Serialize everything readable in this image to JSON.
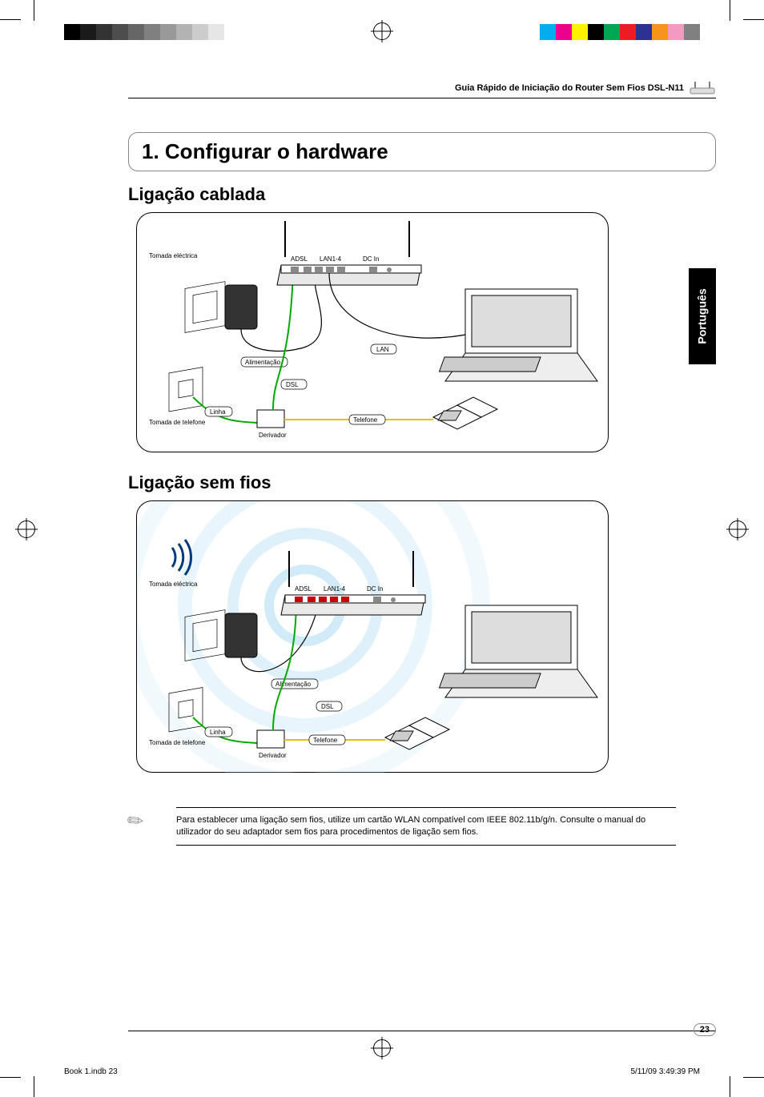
{
  "header": {
    "title": "Guia Rápido de Iniciação do Router Sem Fios DSL-N11"
  },
  "section": {
    "heading": "1. Configurar o hardware"
  },
  "subheadings": {
    "wired": "Ligação cablada",
    "wireless": "Ligação sem fios"
  },
  "side_tab": {
    "label": "Português"
  },
  "diagram": {
    "power_outlet": "Tomada eléctrica",
    "phone_outlet": "Tomada de telefone",
    "power": "Alimentação",
    "line": "Linha",
    "splitter": "Derivador",
    "phone": "Telefone",
    "adsl": "ADSL",
    "lan14": "LAN1-4",
    "dcin": "DC In",
    "lan": "LAN",
    "dsl": "DSL"
  },
  "note": {
    "text": "Para establecer uma ligação sem fios, utilize um cartão WLAN compatível com IEEE 802.11b/g/n. Consulte o manual do utilizador do seu adaptador sem fios para procedimentos de ligação sem fios."
  },
  "page_number": "23",
  "imprint": {
    "left": "Book 1.indb   23",
    "right": "5/11/09   3:49:39 PM"
  },
  "printbar": {
    "left_colors": [
      "#000000",
      "#1a1a1a",
      "#333333",
      "#4d4d4d",
      "#666666",
      "#808080",
      "#999999",
      "#b3b3b3",
      "#cccccc",
      "#e6e6e6"
    ],
    "right_colors": [
      "#00aeef",
      "#ec008c",
      "#fff200",
      "#000000",
      "#00a651",
      "#ed1c24",
      "#2e3192",
      "#f7941d",
      "#f49ac1",
      "#808080"
    ]
  }
}
